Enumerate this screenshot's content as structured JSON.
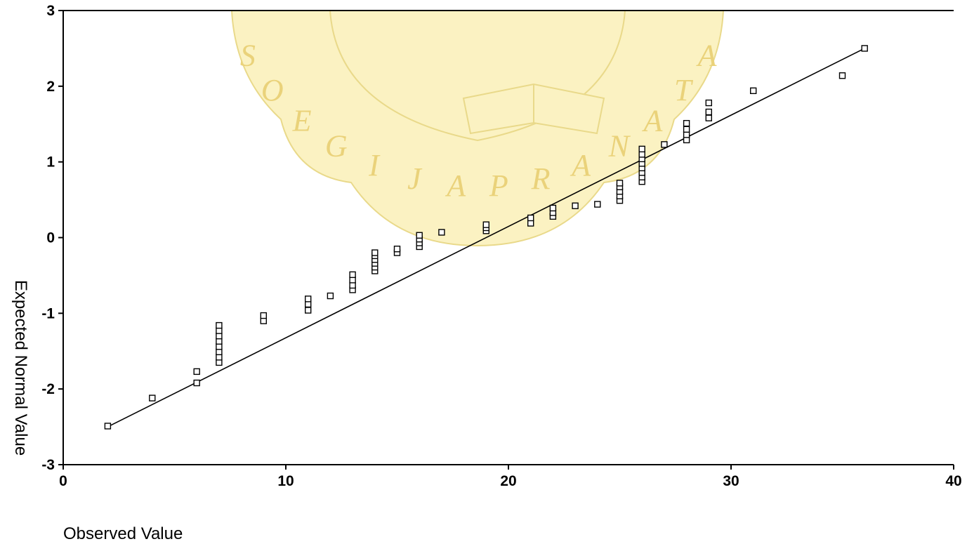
{
  "chart_data": {
    "type": "scatter",
    "title": "",
    "xlabel": "Observed Value",
    "ylabel": "Expected Normal Value",
    "xlim": [
      0,
      40
    ],
    "ylim": [
      -3,
      3
    ],
    "x_ticks": [
      0,
      10,
      20,
      30,
      40
    ],
    "y_ticks": [
      -3,
      -2,
      -1,
      0,
      1,
      2,
      3
    ],
    "grid": false,
    "legend": "none",
    "reference_line": {
      "x": [
        2,
        36
      ],
      "y": [
        -2.5,
        2.5
      ]
    },
    "series": [
      {
        "points": [
          [
            2,
            -2.49
          ],
          [
            4,
            -2.12
          ],
          [
            6,
            -1.92
          ],
          [
            6,
            -1.77
          ],
          [
            7,
            -1.65
          ],
          [
            7,
            -1.58
          ],
          [
            7,
            -1.51
          ],
          [
            7,
            -1.44
          ],
          [
            7,
            -1.37
          ],
          [
            7,
            -1.3
          ],
          [
            7,
            -1.23
          ],
          [
            7,
            -1.16
          ],
          [
            9,
            -1.1
          ],
          [
            9,
            -1.03
          ],
          [
            11,
            -0.96
          ],
          [
            11,
            -0.88
          ],
          [
            11,
            -0.81
          ],
          [
            12,
            -0.77
          ],
          [
            13,
            -0.69
          ],
          [
            13,
            -0.63
          ],
          [
            13,
            -0.56
          ],
          [
            13,
            -0.49
          ],
          [
            14,
            -0.44
          ],
          [
            14,
            -0.39
          ],
          [
            14,
            -0.34
          ],
          [
            14,
            -0.29
          ],
          [
            14,
            -0.24
          ],
          [
            14,
            -0.2
          ],
          [
            15,
            -0.2
          ],
          [
            15,
            -0.15
          ],
          [
            16,
            -0.12
          ],
          [
            16,
            -0.07
          ],
          [
            16,
            -0.02
          ],
          [
            16,
            0.03
          ],
          [
            17,
            0.07
          ],
          [
            19,
            0.09
          ],
          [
            19,
            0.13
          ],
          [
            19,
            0.17
          ],
          [
            21,
            0.19
          ],
          [
            21,
            0.26
          ],
          [
            22,
            0.28
          ],
          [
            22,
            0.33
          ],
          [
            22,
            0.39
          ],
          [
            23,
            0.42
          ],
          [
            24,
            0.44
          ],
          [
            25,
            0.49
          ],
          [
            25,
            0.55
          ],
          [
            25,
            0.61
          ],
          [
            25,
            0.67
          ],
          [
            25,
            0.72
          ],
          [
            26,
            0.74
          ],
          [
            26,
            0.8
          ],
          [
            26,
            0.86
          ],
          [
            26,
            0.92
          ],
          [
            26,
            0.98
          ],
          [
            26,
            1.04
          ],
          [
            26,
            1.1
          ],
          [
            26,
            1.17
          ],
          [
            27,
            1.23
          ],
          [
            28,
            1.29
          ],
          [
            28,
            1.36
          ],
          [
            28,
            1.43
          ],
          [
            28,
            1.51
          ],
          [
            29,
            1.58
          ],
          [
            29,
            1.66
          ],
          [
            29,
            1.78
          ],
          [
            31,
            1.94
          ],
          [
            35,
            2.14
          ],
          [
            36,
            2.5
          ]
        ]
      }
    ]
  },
  "watermark": {
    "letters": [
      "S",
      "O",
      "E",
      "G",
      "I",
      "J",
      "A",
      "P",
      "R",
      "A",
      "N",
      "A",
      "T",
      "A"
    ]
  }
}
